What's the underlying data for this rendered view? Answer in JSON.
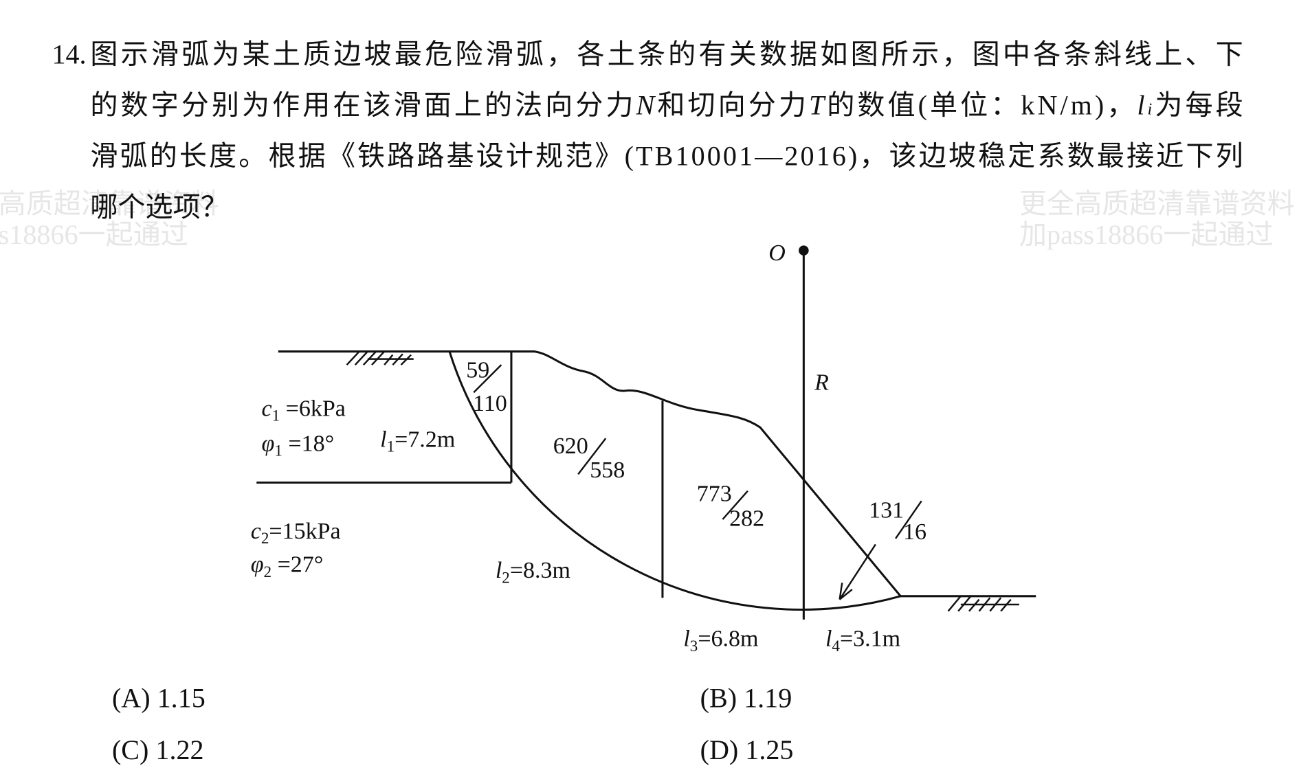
{
  "question": {
    "number": "14.",
    "line1": "图示滑弧为某土质边坡最危险滑弧，各土条的有关数据如图所示，图中各条斜线上、下",
    "line2": [
      "的数字分别为作用在该滑面上的法向分力",
      "N",
      "和切向分力",
      "T",
      "的数值(单位：kN/m)，",
      "l",
      "i",
      "为每段"
    ],
    "line3": "滑弧的长度。根据《铁路路基设计规范》(TB10001—2016)，该边坡稳定系数最接近下列",
    "line4": "哪个选项？"
  },
  "watermarks": [
    "高质超清靠谱资料",
    "s18866一起通过",
    "更全高质超清靠谱资料",
    "加pass18866一起通过"
  ],
  "figure": {
    "center": "O",
    "radius": "R",
    "layers": [
      {
        "c": [
          "c",
          "1",
          " =6kPa"
        ],
        "phi": [
          "φ",
          "1",
          " =18°"
        ]
      },
      {
        "c": [
          "c",
          "2",
          "=15kPa"
        ],
        "phi": [
          "φ",
          "2",
          " =27°"
        ]
      }
    ],
    "slices": [
      {
        "N": "59",
        "T": "110",
        "length": [
          "l",
          "1",
          "=7.2m"
        ]
      },
      {
        "N": "620",
        "T": "558",
        "length": [
          "l",
          "2",
          "=8.3m"
        ]
      },
      {
        "N": "773",
        "T": "282",
        "length": [
          "l",
          "3",
          "=6.8m"
        ]
      },
      {
        "N": "131",
        "T": "16",
        "length": [
          "l",
          "4",
          "=3.1m"
        ]
      }
    ]
  },
  "options": [
    "(A) 1.15",
    "(B) 1.19",
    "(C) 1.22",
    "(D) 1.25"
  ]
}
